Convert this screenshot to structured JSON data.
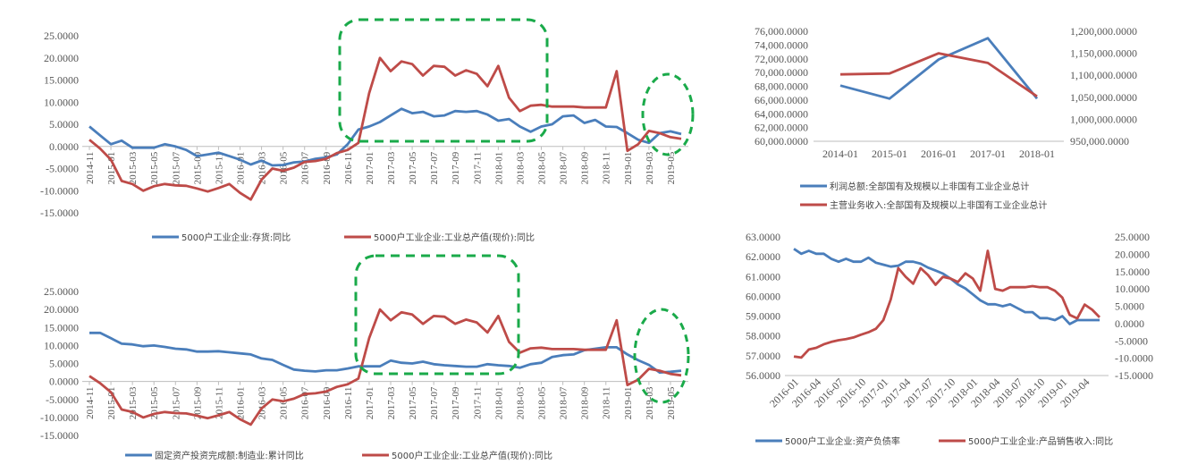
{
  "colors": {
    "blue": "#4A7EBB",
    "red": "#BE4B48",
    "green": "#1AAA4A"
  },
  "chart_data": [
    {
      "id": "c1",
      "type": "line",
      "x": [
        "2014-11",
        "2014-12",
        "2015-01",
        "2015-02",
        "2015-03",
        "2015-04",
        "2015-05",
        "2015-06",
        "2015-07",
        "2015-08",
        "2015-09",
        "2015-10",
        "2015-11",
        "2015-12",
        "2016-01",
        "2016-02",
        "2016-03",
        "2016-04",
        "2016-05",
        "2016-06",
        "2016-07",
        "2016-08",
        "2016-09",
        "2016-10",
        "2016-11",
        "2016-12",
        "2017-01",
        "2017-02",
        "2017-03",
        "2017-04",
        "2017-05",
        "2017-06",
        "2017-07",
        "2017-08",
        "2017-09",
        "2017-10",
        "2017-11",
        "2017-12",
        "2018-01",
        "2018-02",
        "2018-03",
        "2018-04",
        "2018-05",
        "2018-06",
        "2018-07",
        "2018-08",
        "2018-09",
        "2018-10",
        "2018-11",
        "2018-12",
        "2019-01",
        "2019-02",
        "2019-03",
        "2019-04",
        "2019-05",
        "2019-06"
      ],
      "xticks": [
        "2014-11",
        "2015-01",
        "2015-03",
        "2015-05",
        "2015-07",
        "2015-09",
        "2015-11",
        "2016-01",
        "2016-03",
        "2016-05",
        "2016-07",
        "2016-09",
        "2016-11",
        "2017-01",
        "2017-03",
        "2017-05",
        "2017-07",
        "2017-09",
        "2017-11",
        "2018-01",
        "2018-03",
        "2018-05",
        "2018-07",
        "2018-09",
        "2018-11",
        "2019-01",
        "2019-03",
        "2019-05"
      ],
      "xtick_labels": [
        "2014-11",
        "2015-01",
        "2015-03",
        "2015-05",
        "2015-07",
        "2015-09",
        "2015-11",
        "2016-01",
        "2016-03",
        "2016-05",
        "2016-07",
        "2016-09",
        "2016-11",
        "2017-01",
        "2017-03",
        "2017-05",
        "2017-07",
        "2017-09",
        "2017-11",
        "2018-01",
        "2018-03",
        "2018-05",
        "2018-07",
        "2018-09",
        "2018-11",
        "2019-01",
        "2019-03",
        "2019-05"
      ],
      "ylim": [
        -15,
        25
      ],
      "yticks": [
        "25.0000",
        "20.0000",
        "15.0000",
        "10.0000",
        "5.0000",
        "0.0000",
        "-5.0000",
        "-10.0000",
        "-15.0000"
      ],
      "series": [
        {
          "name": "5000户工业企业:存货:同比",
          "color": "#4A7EBB",
          "values": [
            4.5,
            2.5,
            0.5,
            1.3,
            -0.3,
            -0.3,
            -0.3,
            0.5,
            0,
            -0.8,
            -2.2,
            -1.8,
            -1.4,
            -2.2,
            -3,
            -4.1,
            -3.2,
            -4.3,
            -4.2,
            -3.6,
            -3.4,
            -2.8,
            -2.5,
            -1.8,
            0.5,
            3.8,
            4.5,
            5.5,
            7,
            8.5,
            7.5,
            7.8,
            6.8,
            7,
            8,
            7.8,
            8,
            7.2,
            5.8,
            6.2,
            4.5,
            3.3,
            4.5,
            5,
            6.8,
            7,
            5.3,
            6,
            4.5,
            4.4,
            3,
            1.5,
            0.8,
            3,
            3.4,
            2.8
          ]
        },
        {
          "name": "5000户工业企业:工业总产值(现价):同比",
          "color": "#BE4B48",
          "values": [
            1.5,
            -0.5,
            -3,
            -7.8,
            -8.5,
            -10,
            -9,
            -8.5,
            -8.8,
            -8.9,
            -9.5,
            -10.2,
            -9.4,
            -8.5,
            -10.5,
            -12,
            -7.5,
            -5,
            -5.5,
            -4.8,
            -3.5,
            -3.3,
            -2.8,
            -1.5,
            -0.8,
            0.8,
            12,
            20,
            17,
            19.2,
            18.6,
            16,
            18.2,
            18,
            16,
            17.2,
            16.4,
            13.6,
            18.2,
            11,
            8,
            9.2,
            9.4,
            9,
            9,
            9,
            8.8,
            8.8,
            8.8,
            17,
            -1,
            0.5,
            3.5,
            3,
            2.1,
            1.7
          ]
        }
      ]
    },
    {
      "id": "c2",
      "type": "line",
      "x": [
        "2014-11",
        "2014-12",
        "2015-01",
        "2015-02",
        "2015-03",
        "2015-04",
        "2015-05",
        "2015-06",
        "2015-07",
        "2015-08",
        "2015-09",
        "2015-10",
        "2015-11",
        "2015-12",
        "2016-01",
        "2016-02",
        "2016-03",
        "2016-04",
        "2016-05",
        "2016-06",
        "2016-07",
        "2016-08",
        "2016-09",
        "2016-10",
        "2016-11",
        "2016-12",
        "2017-01",
        "2017-02",
        "2017-03",
        "2017-04",
        "2017-05",
        "2017-06",
        "2017-07",
        "2017-08",
        "2017-09",
        "2017-10",
        "2017-11",
        "2017-12",
        "2018-01",
        "2018-02",
        "2018-03",
        "2018-04",
        "2018-05",
        "2018-06",
        "2018-07",
        "2018-08",
        "2018-09",
        "2018-10",
        "2018-11",
        "2018-12",
        "2019-01",
        "2019-02",
        "2019-03",
        "2019-04",
        "2019-05",
        "2019-06"
      ],
      "xticks": [
        "2014-11",
        "2015-01",
        "2015-03",
        "2015-05",
        "2015-07",
        "2015-09",
        "2015-11",
        "2016-01",
        "2016-03",
        "2016-05",
        "2016-07",
        "2016-09",
        "2016-11",
        "2017-01",
        "2017-03",
        "2017-05",
        "2017-07",
        "2017-09",
        "2017-11",
        "2018-01",
        "2018-03",
        "2018-05",
        "2018-07",
        "2018-09",
        "2018-11",
        "2019-01",
        "2019-03",
        "2019-05"
      ],
      "xtick_labels": [
        "2014-11",
        "2015-01",
        "2015-03",
        "2015-05",
        "2015-07",
        "2015-09",
        "2015-11",
        "2016-01",
        "2016-03",
        "2016-05",
        "2016-07",
        "2016-09",
        "2016-11",
        "2017-01",
        "2017-03",
        "2017-05",
        "2017-07",
        "2017-09",
        "2017-11",
        "2018-01",
        "2018-03",
        "2018-05",
        "2018-07",
        "2018-09",
        "2018-11",
        "2019-01",
        "2019-03",
        "2019-05"
      ],
      "ylim": [
        -15,
        25
      ],
      "yticks": [
        "25.0000",
        "20.0000",
        "15.0000",
        "10.0000",
        "5.0000",
        "0.0000",
        "-5.0000",
        "-10.0000",
        "-15.0000"
      ],
      "series": [
        {
          "name": "固定资产投资完成额:制造业:累计同比",
          "color": "#4A7EBB",
          "values": [
            13.5,
            13.5,
            12,
            10.5,
            10.3,
            9.8,
            10,
            9.6,
            9.1,
            8.9,
            8.3,
            8.3,
            8.4,
            8.1,
            7.8,
            7.5,
            6.4,
            6,
            4.6,
            3.3,
            3,
            2.8,
            3.1,
            3.1,
            3.6,
            4.2,
            4.2,
            4.2,
            5.8,
            5.2,
            5,
            5.5,
            4.8,
            4.5,
            4.3,
            4.1,
            4.1,
            4.8,
            4.5,
            4.3,
            3.8,
            4.8,
            5.2,
            6.8,
            7.3,
            7.5,
            8.7,
            9.1,
            9.5,
            9.5,
            7.5,
            5.9,
            4.6,
            2.5,
            2.7,
            3
          ]
        },
        {
          "name": "5000户工业企业:工业总产值(现价):同比",
          "color": "#BE4B48",
          "values": [
            1.5,
            -0.5,
            -3,
            -7.8,
            -8.5,
            -10,
            -9,
            -8.5,
            -8.8,
            -8.9,
            -9.5,
            -10.2,
            -9.4,
            -8.5,
            -10.5,
            -12,
            -7.5,
            -5,
            -5.5,
            -4.8,
            -3.5,
            -3.3,
            -2.8,
            -1.5,
            -0.8,
            0.8,
            12,
            20,
            17,
            19.2,
            18.6,
            16,
            18.2,
            18,
            16,
            17.2,
            16.4,
            13.6,
            18.2,
            11,
            8,
            9.2,
            9.4,
            9,
            9,
            9,
            8.8,
            8.8,
            8.8,
            17,
            -1,
            0.5,
            3.5,
            3,
            2.1,
            1.7
          ]
        }
      ]
    },
    {
      "id": "c3",
      "type": "line",
      "x": [
        "2014-01",
        "2015-01",
        "2016-01",
        "2017-01",
        "2018-01"
      ],
      "xtick_labels": [
        "2014-01",
        "2015-01",
        "2016-01",
        "2017-01",
        "2018-01"
      ],
      "ylim_left": [
        60000,
        76000
      ],
      "ylim_right": [
        950000000,
        1200000000
      ],
      "yticks_left": [
        "76,000.0000",
        "74,000.0000",
        "72,000.0000",
        "70,000.0000",
        "68,000.0000",
        "66,000.0000",
        "64,000.0000",
        "62,000.0000",
        "60,000.0000"
      ],
      "yticks_right": [
        "1,200,000.0000",
        "1,150,000.0000",
        "1,100,000.0000",
        "1,050,000.0000",
        "1,000,000.0000",
        "950,000.0000"
      ],
      "series": [
        {
          "name": "利润总额:全部国有及规模以上非国有工业企业总计",
          "color": "#4A7EBB",
          "axis": "left",
          "values": [
            68100,
            66200,
            71900,
            75000,
            66200
          ]
        },
        {
          "name": "主营业务收入:全部国有及规模以上非国有工业企业总计",
          "color": "#BE4B48",
          "axis": "right",
          "values": [
            1102000000,
            1104000000,
            1150000000,
            1128000000,
            1052000000
          ]
        }
      ]
    },
    {
      "id": "c4",
      "type": "line",
      "x": [
        "2016-01",
        "2016-02",
        "2016-03",
        "2016-04",
        "2016-05",
        "2016-06",
        "2016-07",
        "2016-08",
        "2016-09",
        "2016-10",
        "2016-11",
        "2016-12",
        "2017-01",
        "2017-02",
        "2017-03",
        "2017-04",
        "2017-05",
        "2017-06",
        "2017-07",
        "2017-08",
        "2017-09",
        "2017-10",
        "2017-11",
        "2017-12",
        "2018-01",
        "2018-02",
        "2018-03",
        "2018-04",
        "2018-05",
        "2018-06",
        "2018-07",
        "2018-08",
        "2018-09",
        "2018-10",
        "2018-11",
        "2018-12",
        "2019-01",
        "2019-02",
        "2019-03",
        "2019-04",
        "2019-05",
        "2019-06"
      ],
      "xticks": [
        "2016-01",
        "2016-04",
        "2016-07",
        "2016-10",
        "2017-01",
        "2017-04",
        "2017-07",
        "2017-10",
        "2018-01",
        "2018-04",
        "2018-07",
        "2018-10",
        "2019-01",
        "2019-04"
      ],
      "xtick_labels": [
        "2016-01",
        "2016-04",
        "2016-07",
        "2016-10",
        "2017-01",
        "2017-04",
        "2017-07",
        "2017-10",
        "2018-01",
        "2018-04",
        "2018-07",
        "2018-10",
        "2019-01",
        "2019-04"
      ],
      "ylim_left": [
        56,
        63
      ],
      "ylim_right": [
        -15,
        25
      ],
      "yticks_left": [
        "63.0000",
        "62.0000",
        "61.0000",
        "60.0000",
        "59.0000",
        "58.0000",
        "57.0000",
        "56.0000"
      ],
      "yticks_right": [
        "25.0000",
        "20.0000",
        "15.0000",
        "10.0000",
        "5.0000",
        "0.0000",
        "-5.0000",
        "-10.0000",
        "-15.0000"
      ],
      "series": [
        {
          "name": "5000户工业企业:资产负债率",
          "color": "#4A7EBB",
          "axis": "left",
          "values": [
            62.4,
            62.15,
            62.3,
            62.15,
            62.15,
            61.9,
            61.75,
            61.9,
            61.75,
            61.75,
            61.95,
            61.7,
            61.6,
            61.5,
            61.55,
            61.75,
            61.75,
            61.65,
            61.45,
            61.3,
            61.15,
            60.9,
            60.6,
            60.4,
            60.1,
            59.8,
            59.6,
            59.6,
            59.5,
            59.6,
            59.4,
            59.2,
            59.2,
            58.9,
            58.9,
            58.8,
            59,
            58.6,
            58.8,
            58.8,
            58.8,
            58.8
          ]
        },
        {
          "name": "5000户工业企业:产品销售收入:同比",
          "color": "#BE4B48",
          "axis": "right",
          "values": [
            -9.5,
            -9.8,
            -7.5,
            -7,
            -6,
            -5.3,
            -4.8,
            -4.5,
            -4,
            -3.2,
            -2.5,
            -1.5,
            1,
            7,
            16,
            13.5,
            11.5,
            16,
            14,
            11.2,
            13.5,
            13,
            12,
            14.5,
            13,
            9.5,
            21,
            10,
            9.5,
            10.5,
            10.5,
            10.5,
            10.8,
            10.5,
            10.5,
            9.5,
            7.5,
            2.5,
            1.5,
            5.5,
            4,
            1.8
          ]
        }
      ]
    }
  ]
}
